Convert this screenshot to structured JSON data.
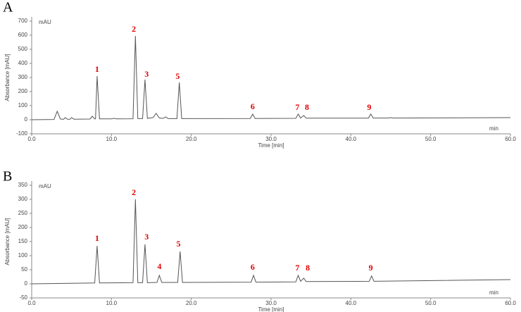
{
  "chart_data": [
    {
      "type": "line",
      "panel": "A",
      "y_unit": "mAU",
      "x_unit": "min",
      "xlabel": "Time [min]",
      "ylabel": "Absorbance [mAU]",
      "xlim": [
        0,
        60
      ],
      "ylim": [
        -100,
        700
      ],
      "xticks": [
        {
          "value": 0,
          "label": "0.0"
        },
        {
          "value": 10,
          "label": "10.0"
        },
        {
          "value": 20,
          "label": "20.0"
        },
        {
          "value": 30,
          "label": "30.0"
        },
        {
          "value": 40,
          "label": "40.0"
        },
        {
          "value": 50,
          "label": "50.0"
        },
        {
          "value": 60,
          "label": "60.0"
        }
      ],
      "yticks": [
        -100,
        0,
        100,
        200,
        300,
        400,
        500,
        600,
        700
      ],
      "series": [
        {
          "color": "#555555",
          "x": [
            0,
            2.8,
            3.2,
            3.6,
            4.0,
            4.2,
            4.5,
            4.8,
            5.0,
            5.3,
            7.3,
            7.6,
            7.9,
            8.0,
            8.2,
            8.5,
            10.0,
            10.3,
            10.6,
            12.7,
            13.0,
            13.3,
            13.9,
            14.2,
            14.5,
            15.2,
            15.6,
            16.0,
            16.5,
            16.8,
            17.1,
            18.2,
            18.5,
            18.8,
            27.4,
            27.7,
            28.0,
            33.1,
            33.4,
            33.7,
            34.1,
            34.4,
            42.2,
            42.5,
            42.8,
            44.7,
            45.0,
            45.3,
            60
          ],
          "values": [
            0,
            2,
            60,
            5,
            3,
            15,
            3,
            4,
            15,
            4,
            5,
            25,
            6,
            6,
            310,
            6,
            6,
            10,
            6,
            7,
            595,
            8,
            8,
            285,
            10,
            15,
            45,
            12,
            10,
            20,
            8,
            8,
            265,
            8,
            9,
            40,
            9,
            10,
            40,
            12,
            30,
            11,
            11,
            40,
            12,
            12,
            15,
            12,
            15
          ]
        }
      ],
      "annotations": [
        {
          "text": "1",
          "x": 8.2,
          "y": 355
        },
        {
          "text": "2",
          "x": 12.8,
          "y": 640
        },
        {
          "text": "3",
          "x": 14.4,
          "y": 320
        },
        {
          "text": "5",
          "x": 18.3,
          "y": 305
        },
        {
          "text": "6",
          "x": 27.7,
          "y": 90
        },
        {
          "text": "7",
          "x": 33.3,
          "y": 85
        },
        {
          "text": "8",
          "x": 34.5,
          "y": 85
        },
        {
          "text": "9",
          "x": 42.3,
          "y": 85
        }
      ]
    },
    {
      "type": "line",
      "panel": "B",
      "y_unit": "mAU",
      "x_unit": "min",
      "xlabel": "Time [min]",
      "ylabel": "Absorbance [mAU]",
      "xlim": [
        0,
        60
      ],
      "ylim": [
        -50,
        350
      ],
      "xticks": [
        {
          "value": 0,
          "label": "0.0"
        },
        {
          "value": 10,
          "label": "10.0"
        },
        {
          "value": 20,
          "label": "20.0"
        },
        {
          "value": 30,
          "label": "30.0"
        },
        {
          "value": 40,
          "label": "40.0"
        },
        {
          "value": 50,
          "label": "50.0"
        },
        {
          "value": 60,
          "label": "60.0"
        }
      ],
      "yticks": [
        -50,
        0,
        50,
        100,
        150,
        200,
        250,
        300,
        350
      ],
      "series": [
        {
          "color": "#555555",
          "x": [
            0,
            7.9,
            8.2,
            8.5,
            12.7,
            13.0,
            13.3,
            13.9,
            14.2,
            14.5,
            15.7,
            16.0,
            16.3,
            18.3,
            18.6,
            18.9,
            27.5,
            27.8,
            28.1,
            33.1,
            33.4,
            33.7,
            34.1,
            34.4,
            42.3,
            42.6,
            42.9,
            60
          ],
          "values": [
            0,
            3,
            135,
            3,
            4,
            300,
            4,
            4,
            140,
            4,
            5,
            30,
            5,
            5,
            115,
            5,
            6,
            30,
            6,
            7,
            30,
            9,
            20,
            8,
            9,
            28,
            9,
            15
          ]
        }
      ],
      "annotations": [
        {
          "text": "1",
          "x": 8.2,
          "y": 160
        },
        {
          "text": "2",
          "x": 12.8,
          "y": 322
        },
        {
          "text": "3",
          "x": 14.4,
          "y": 165
        },
        {
          "text": "4",
          "x": 16.0,
          "y": 60
        },
        {
          "text": "5",
          "x": 18.4,
          "y": 140
        },
        {
          "text": "6",
          "x": 27.7,
          "y": 57
        },
        {
          "text": "7",
          "x": 33.3,
          "y": 55
        },
        {
          "text": "8",
          "x": 34.6,
          "y": 55
        },
        {
          "text": "9",
          "x": 42.5,
          "y": 55
        }
      ]
    }
  ]
}
